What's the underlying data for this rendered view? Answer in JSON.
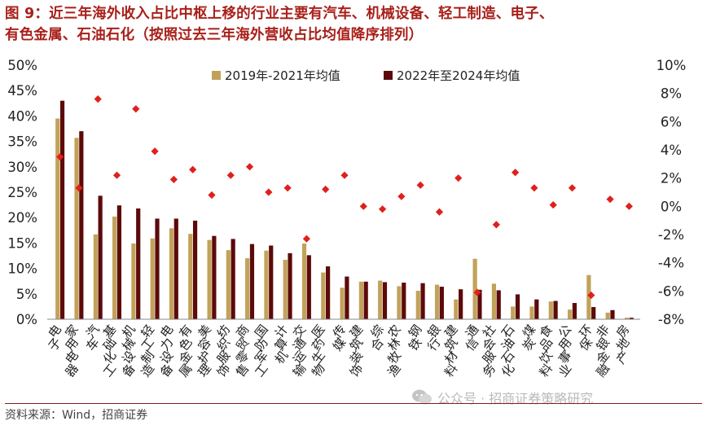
{
  "title": {
    "line1": "图 9：近三年海外收入占比中枢上移的行业主要有汽车、机械设备、轻工制造、电子、",
    "line2": "有色金属、石油石化（按照过去三年海外营收占比均值降序排列）"
  },
  "source": "资料来源：Wind，招商证券",
  "watermark": "公众号 · 招商证券策略研究",
  "colors": {
    "series1": "#c2a25a",
    "series2": "#5c0a0a",
    "diff": "#e0201c",
    "title": "#a8201a"
  },
  "chart_data": {
    "type": "bar",
    "categories": [
      "电子",
      "家用电器",
      "汽车",
      "基础化工",
      "机械设备",
      "轻工制造",
      "电力设备",
      "有色金属",
      "美容护理",
      "纺织服饰",
      "商贸零售",
      "国防军工",
      "计算机",
      "交通运输",
      "医药生物",
      "传媒",
      "建筑装饰",
      "综合",
      "农林牧渔",
      "钢铁",
      "银行",
      "建筑材料",
      "通信",
      "社会服务",
      "石油石化",
      "煤炭",
      "食品饮料",
      "公用事业",
      "环保",
      "非银金融",
      "房地产"
    ],
    "series": [
      {
        "name": "2019年-2021年均值",
        "axis": "left",
        "values": [
          39.5,
          35.7,
          16.7,
          20.2,
          14.9,
          15.9,
          17.9,
          16.8,
          15.6,
          13.6,
          12.0,
          13.5,
          11.7,
          14.9,
          9.2,
          6.2,
          7.4,
          7.6,
          6.5,
          5.6,
          6.8,
          3.9,
          11.9,
          7.0,
          2.5,
          2.5,
          3.5,
          1.9,
          8.7,
          1.3,
          0.3
        ]
      },
      {
        "name": "2022年至2024年均值",
        "axis": "left",
        "values": [
          43.0,
          37.0,
          24.3,
          22.4,
          21.8,
          19.8,
          19.8,
          19.4,
          16.4,
          15.8,
          14.8,
          14.5,
          13.0,
          12.6,
          10.4,
          8.4,
          7.4,
          7.3,
          7.2,
          7.1,
          6.4,
          5.9,
          5.8,
          5.7,
          4.9,
          3.9,
          3.6,
          3.2,
          2.4,
          1.8,
          0.3
        ]
      },
      {
        "name": "差值",
        "axis": "right",
        "marker": "diamond",
        "values": [
          3.5,
          1.3,
          7.6,
          2.2,
          6.9,
          3.9,
          1.9,
          2.6,
          0.8,
          2.2,
          2.8,
          1.0,
          1.3,
          -2.3,
          1.2,
          2.2,
          0.0,
          -0.2,
          0.7,
          1.5,
          -0.4,
          2.0,
          -6.1,
          -1.3,
          2.4,
          1.3,
          0.1,
          1.3,
          -6.3,
          0.5,
          0.0
        ]
      }
    ],
    "left_axis": {
      "min": 0,
      "max": 50,
      "ticks": [
        "0%",
        "5%",
        "10%",
        "15%",
        "20%",
        "25%",
        "30%",
        "35%",
        "40%",
        "45%",
        "50%"
      ]
    },
    "right_axis": {
      "min": -8,
      "max": 10,
      "ticks": [
        "-8%",
        "-6%",
        "-4%",
        "-2%",
        "0%",
        "2%",
        "4%",
        "6%",
        "8%",
        "10%"
      ]
    },
    "legend_position": "top-center",
    "grid": false
  }
}
